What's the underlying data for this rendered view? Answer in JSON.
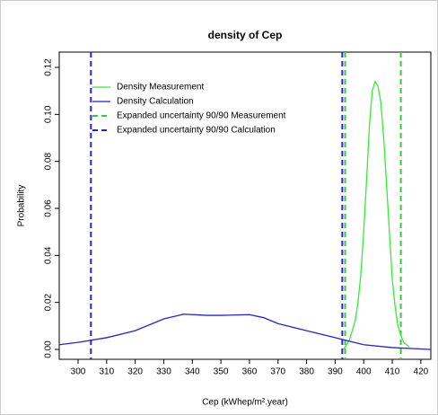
{
  "chart_data": {
    "type": "line",
    "title": "density of Cep",
    "x_label": "Cep (kWhep/m².year)",
    "y_label": "Probability",
    "xlim": [
      293.4,
      423.5
    ],
    "ylim": [
      -0.0042,
      0.1265
    ],
    "xticks": [
      300,
      310,
      320,
      330,
      340,
      350,
      360,
      370,
      380,
      390,
      400,
      410,
      420
    ],
    "yticks": [
      {
        "value": 0,
        "label": "0.00"
      },
      0.02,
      0.04,
      0.06,
      {
        "value": 0.1,
        "label": "0.10"
      },
      0.12,
      0.08
    ],
    "legend": "top-left",
    "series": [
      {
        "name": "Density Measurement",
        "color": "#33ee33",
        "x": [
          393,
          395,
          397,
          398,
          399,
          400,
          401,
          402,
          403,
          404,
          405,
          406,
          407,
          408,
          409,
          410,
          411,
          412,
          413,
          414,
          416
        ],
        "values": [
          0,
          0.004,
          0.012,
          0.02,
          0.032,
          0.05,
          0.072,
          0.095,
          0.11,
          0.114,
          0.112,
          0.105,
          0.09,
          0.07,
          0.05,
          0.03,
          0.018,
          0.01,
          0.006,
          0.003,
          0.001
        ]
      },
      {
        "name": "Density Calculation",
        "color": "#2222dd",
        "x": [
          293.4,
          300,
          310,
          320,
          330,
          337,
          345,
          350,
          360,
          365,
          370,
          380,
          390,
          400,
          410,
          420,
          423.5
        ],
        "values": [
          0.002,
          0.003,
          0.005,
          0.008,
          0.013,
          0.015,
          0.0145,
          0.0145,
          0.0148,
          0.0135,
          0.011,
          0.008,
          0.005,
          0.002,
          0.0008,
          0.0002,
          0
        ]
      }
    ],
    "vlines": [
      {
        "name": "Expanded uncertainty 90/90 Measurement",
        "color": "#33cc33",
        "values": [
          393.5,
          413
        ]
      },
      {
        "name": "Expanded uncertainty 90/90 Calculation",
        "color": "#2222dd",
        "values": [
          304.5,
          392.5
        ]
      }
    ]
  }
}
